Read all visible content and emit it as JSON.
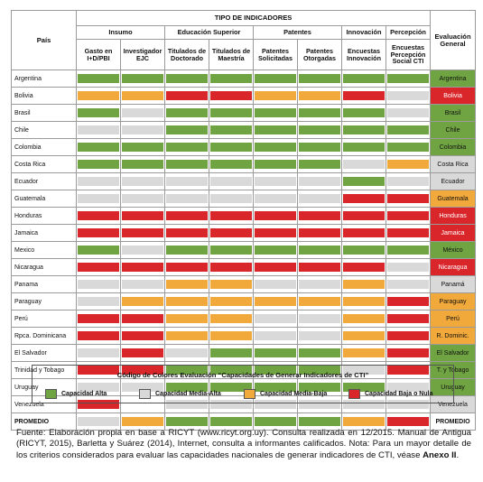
{
  "header": {
    "title": "TIPO DE INDICADORES",
    "country_col": "País",
    "groups": [
      {
        "label": "Insumo",
        "span": 2
      },
      {
        "label": "Educación Superior",
        "span": 2
      },
      {
        "label": "Patentes",
        "span": 2
      },
      {
        "label": "Innovación",
        "span": 1
      },
      {
        "label": "Percepción",
        "span": 1
      }
    ],
    "subcolumns": [
      "Gasto en I+D/PBI",
      "Investigador EJC",
      "Titulados de Doctorado",
      "Titulados de Maestría",
      "Patentes Solicitadas",
      "Patentes Otorgadas",
      "Encuestas Innovación",
      "Encuestas Percepción Social CTI"
    ],
    "eval_col": "Evaluación General"
  },
  "colors": {
    "G": "#70a442",
    "L": "#d9d9d9",
    "O": "#f2a93b",
    "R": "#d9262b",
    "W": "#ffffff"
  },
  "rows": [
    {
      "country": "Argentina",
      "cells": [
        "G",
        "G",
        "G",
        "G",
        "G",
        "G",
        "G",
        "G"
      ],
      "eval": "Argentina",
      "eval_color": "G"
    },
    {
      "country": "Bolivia",
      "cells": [
        "O",
        "O",
        "R",
        "R",
        "O",
        "O",
        "R",
        "L"
      ],
      "eval": "Bolivia",
      "eval_color": "R"
    },
    {
      "country": "Brasil",
      "cells": [
        "G",
        "L",
        "G",
        "G",
        "G",
        "G",
        "G",
        "L"
      ],
      "eval": "Brasil",
      "eval_color": "G"
    },
    {
      "country": "Chile",
      "cells": [
        "L",
        "L",
        "G",
        "G",
        "G",
        "G",
        "G",
        "G"
      ],
      "eval": "Chile",
      "eval_color": "G"
    },
    {
      "country": "Colombia",
      "cells": [
        "G",
        "G",
        "G",
        "G",
        "G",
        "G",
        "G",
        "G"
      ],
      "eval": "Colombia",
      "eval_color": "G"
    },
    {
      "country": "Costa Rica",
      "cells": [
        "G",
        "G",
        "G",
        "G",
        "G",
        "G",
        "L",
        "O"
      ],
      "eval": "Costa Rica",
      "eval_color": "L"
    },
    {
      "country": "Ecuador",
      "cells": [
        "L",
        "L",
        "L",
        "L",
        "L",
        "L",
        "G",
        "L"
      ],
      "eval": "Ecuador",
      "eval_color": "L"
    },
    {
      "country": "Guatemala",
      "cells": [
        "L",
        "L",
        "L",
        "L",
        "L",
        "L",
        "R",
        "R"
      ],
      "eval": "Guatemala",
      "eval_color": "O"
    },
    {
      "country": "Honduras",
      "cells": [
        "R",
        "R",
        "R",
        "R",
        "R",
        "R",
        "R",
        "R"
      ],
      "eval": "Honduras",
      "eval_color": "R"
    },
    {
      "country": "Jamaica",
      "cells": [
        "R",
        "R",
        "R",
        "R",
        "R",
        "R",
        "R",
        "R"
      ],
      "eval": "Jamaica",
      "eval_color": "R"
    },
    {
      "country": "Mexico",
      "cells": [
        "G",
        "L",
        "G",
        "G",
        "G",
        "G",
        "G",
        "G"
      ],
      "eval": "México",
      "eval_color": "G"
    },
    {
      "country": "Nicaragua",
      "cells": [
        "R",
        "R",
        "R",
        "R",
        "R",
        "R",
        "R",
        "L"
      ],
      "eval": "Nicaragua",
      "eval_color": "R"
    },
    {
      "country": "Panama",
      "cells": [
        "L",
        "L",
        "O",
        "O",
        "L",
        "L",
        "O",
        "L"
      ],
      "eval": "Panamá",
      "eval_color": "L"
    },
    {
      "country": "Paraguay",
      "cells": [
        "L",
        "O",
        "O",
        "O",
        "O",
        "O",
        "O",
        "R"
      ],
      "eval": "Paraguay",
      "eval_color": "O"
    },
    {
      "country": "Perú",
      "cells": [
        "R",
        "R",
        "O",
        "O",
        "L",
        "L",
        "O",
        "R"
      ],
      "eval": "Perú",
      "eval_color": "O"
    },
    {
      "country": "Rpca. Dominicana",
      "cells": [
        "R",
        "R",
        "O",
        "O",
        "L",
        "L",
        "O",
        "R"
      ],
      "eval": "R. Dominic.",
      "eval_color": "O"
    },
    {
      "country": "El Salvador",
      "cells": [
        "L",
        "R",
        "L",
        "G",
        "G",
        "G",
        "O",
        "R"
      ],
      "eval": "El Salvador",
      "eval_color": "G"
    },
    {
      "country": "Trinidad y Tobago",
      "cells": [
        "R",
        "R",
        "G",
        "G",
        "G",
        "G",
        "L",
        "R"
      ],
      "eval": "T. y Tobago",
      "eval_color": "G"
    },
    {
      "country": "Uruguay",
      "cells": [
        "L",
        "L",
        "G",
        "G",
        "G",
        "G",
        "G",
        "L"
      ],
      "eval": "Uruguay",
      "eval_color": "G"
    },
    {
      "country": "Venezuela",
      "cells": [
        "R",
        "W",
        "L",
        "L",
        "L",
        "L",
        "L",
        "L"
      ],
      "eval": "Venezuela",
      "eval_color": "L"
    }
  ],
  "promedio": {
    "country": "PROMEDIO",
    "cells": [
      "L",
      "O",
      "G",
      "G",
      "G",
      "G",
      "O",
      "R"
    ],
    "eval": "PROMEDIO",
    "eval_color": "W"
  },
  "legend": {
    "title": "Código de Colores Evaluación “Capacidades de Generar Indicadores de CTI”",
    "items": [
      {
        "label": "Capacidad Alta",
        "color": "G"
      },
      {
        "label": "Capacidad Media-Alta",
        "color": "L"
      },
      {
        "label": "Capacidad Media-Baja",
        "color": "O"
      },
      {
        "label": "Capacidad Baja o Nula",
        "color": "R"
      }
    ]
  },
  "source": {
    "text": "Fuente: Elaboración propia en base a RICYT (www.ricyt.org.uy). Consulta realizada en 12/2015. Manual de Antigua (RICYT, 2015), Barletta y Suárez (2014), Internet, consulta a informantes calificados. Nota: Para un mayor detalle de los criterios considerados para evaluar las capacidades nacionales de generar indicadores de CTI, véase ",
    "bold": "Anexo II",
    "end": "."
  }
}
